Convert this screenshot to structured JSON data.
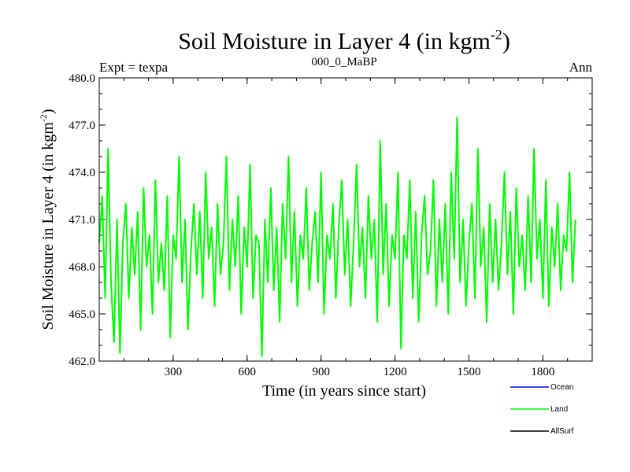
{
  "chart_data": {
    "type": "line",
    "title": "Soil Moisture in Layer 4 (in kgm",
    "title_sup": "-2",
    "title_close": ")",
    "subtitle_left": "Expt = texpa",
    "subtitle_center": "000_0_MaBP",
    "subtitle_right": "Ann",
    "xlabel": "Time (in years since start)",
    "ylabel": "Soil Moisture in Layer 4 (in kgm",
    "ylabel_sup": "-2",
    "ylabel_close": ")",
    "xlim": [
      0,
      2000
    ],
    "ylim": [
      462.0,
      480.0
    ],
    "xticks": [
      300,
      600,
      900,
      1200,
      1500,
      1800
    ],
    "xtick_labels": [
      "300",
      "600",
      "900",
      "1200",
      "1500",
      "1800"
    ],
    "yticks": [
      462.0,
      465.0,
      468.0,
      471.0,
      474.0,
      477.0,
      480.0
    ],
    "ytick_labels": [
      "462.0",
      "465.0",
      "468.0",
      "471.0",
      "474.0",
      "477.0",
      "480.0"
    ],
    "series": [
      {
        "name": "Ocean",
        "color": "#0000ff",
        "values": []
      },
      {
        "name": "Land",
        "color": "#00ff00",
        "x_start": 0,
        "x_step": 12,
        "values": [
          469.5,
          472.5,
          466.0,
          475.5,
          467.0,
          463.2,
          471.0,
          462.5,
          469.5,
          472.0,
          466.0,
          470.5,
          467.5,
          471.5,
          464.0,
          473.0,
          468.0,
          470.0,
          465.0,
          473.5,
          467.0,
          469.5,
          466.5,
          472.5,
          463.5,
          470.0,
          468.5,
          475.0,
          467.0,
          471.0,
          464.0,
          469.0,
          472.0,
          467.5,
          471.5,
          466.0,
          474.0,
          468.5,
          470.5,
          465.5,
          472.0,
          467.5,
          469.5,
          475.0,
          466.5,
          471.0,
          468.0,
          472.5,
          465.0,
          470.5,
          468.0,
          474.5,
          466.0,
          470.0,
          469.5,
          462.3,
          471.0,
          467.0,
          473.0,
          466.5,
          470.5,
          464.5,
          472.0,
          468.5,
          475.0,
          467.0,
          471.5,
          465.5,
          470.0,
          468.5,
          473.0,
          466.5,
          469.5,
          471.5,
          467.0,
          474.0,
          465.0,
          470.0,
          468.5,
          472.0,
          466.0,
          470.5,
          473.5,
          467.5,
          471.0,
          465.5,
          469.5,
          474.5,
          468.0,
          470.5,
          466.0,
          472.5,
          468.5,
          471.0,
          464.5,
          476.0,
          467.5,
          472.0,
          465.5,
          470.0,
          468.5,
          474.0,
          462.8,
          470.0,
          468.5,
          473.5,
          466.0,
          471.5,
          464.5,
          470.0,
          472.5,
          467.5,
          469.0,
          473.5,
          465.5,
          471.0,
          467.0,
          472.0,
          465.0,
          474.0,
          468.5,
          477.5,
          467.0,
          471.0,
          465.5,
          469.5,
          472.0,
          466.0,
          475.5,
          468.0,
          470.5,
          464.5,
          472.0,
          467.0,
          471.0,
          466.5,
          469.5,
          474.0,
          467.5,
          471.5,
          465.0,
          473.0,
          468.0,
          470.0,
          466.5,
          472.5,
          467.0,
          475.5,
          468.5,
          471.0,
          466.0,
          473.5,
          465.5,
          470.5,
          468.0,
          472.0,
          466.5,
          470.0,
          469.0,
          474.0,
          467.0,
          471.0
        ]
      },
      {
        "name": "AllSurf",
        "color": "#000000",
        "values": []
      }
    ],
    "legend_position": "bottom-right"
  }
}
